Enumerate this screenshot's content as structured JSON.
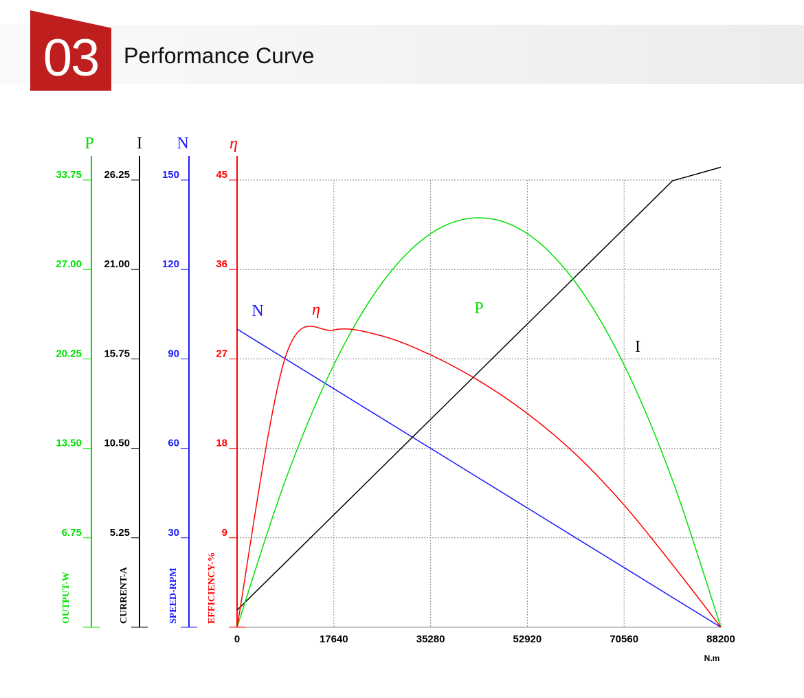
{
  "header": {
    "number": "03",
    "title": "Performance Curve"
  },
  "colors": {
    "P": "#00e000",
    "I": "#000000",
    "N": "#1a1aff",
    "eta": "#ff0000",
    "badge": "#bf1e1e",
    "grid": "#888888"
  },
  "chart_data": {
    "type": "line",
    "x": [
      0,
      8820,
      17640,
      26460,
      35280,
      44100,
      52920,
      61740,
      70560,
      79380,
      88200
    ],
    "xticks": [
      "0",
      "17640",
      "35280",
      "52920",
      "70560",
      "88200"
    ],
    "xlim": [
      0,
      88200
    ],
    "xunit": "N.m",
    "grid": true,
    "axes": [
      {
        "key": "P",
        "symbol": "P",
        "label": "OUTPUT-W",
        "min": 0,
        "max": 33.75,
        "ticks": [
          "6.75",
          "13.50",
          "20.25",
          "27.00",
          "33.75"
        ]
      },
      {
        "key": "I",
        "symbol": "I",
        "label": "CURRENT-A",
        "min": 0,
        "max": 26.25,
        "ticks": [
          "5.25",
          "10.50",
          "15.75",
          "21.00",
          "26.25"
        ]
      },
      {
        "key": "N",
        "symbol": "N",
        "label": "SPEED-RPM",
        "min": 0,
        "max": 150,
        "ticks": [
          "30",
          "60",
          "90",
          "120",
          "150"
        ]
      },
      {
        "key": "eta",
        "symbol": "η",
        "label": "EFFICIENCY-%",
        "min": 0,
        "max": 45,
        "ticks": [
          "9",
          "18",
          "27",
          "36",
          "45"
        ]
      }
    ],
    "series": [
      {
        "name": "N",
        "axis": "N",
        "values": [
          100,
          90,
          80,
          70,
          60,
          50,
          40,
          30,
          20,
          10,
          0
        ]
      },
      {
        "name": "I",
        "axis": "I",
        "values": [
          1.0,
          3.8,
          6.6,
          9.4,
          12.2,
          15.0,
          17.8,
          20.6,
          23.4,
          26.2,
          27.0
        ]
      },
      {
        "name": "P",
        "axis": "P",
        "values": [
          0,
          11.1,
          19.8,
          26.0,
          29.7,
          30.9,
          29.7,
          26.0,
          19.8,
          11.1,
          0
        ]
      },
      {
        "name": "η",
        "axis": "eta",
        "values": [
          0,
          27.2,
          29.9,
          29.3,
          27.4,
          24.8,
          21.5,
          17.4,
          12.3,
          6.3,
          0
        ]
      }
    ]
  }
}
